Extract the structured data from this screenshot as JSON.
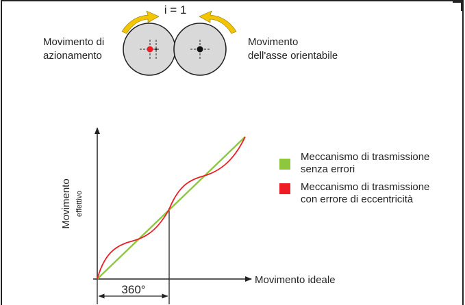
{
  "diagram": {
    "ratio_label": "i = 1",
    "drive": {
      "line1": "Movimento di",
      "line2": "azionamento"
    },
    "axis_motion": {
      "line1": "Movimento",
      "line2": "dell'asse orientabile"
    },
    "y_axis": {
      "main": "Movimento",
      "sub": "effettivo"
    },
    "x_axis": {
      "label": "Movimento ideale"
    },
    "period_label": "360°",
    "legend": [
      {
        "line1": "Meccanismo di trasmissione",
        "line2": "senza errori",
        "color": "#8dc63f"
      },
      {
        "line1": "Meccanismo di trasmissione",
        "line2": "con errore di eccentricità",
        "color": "#ee1c25"
      }
    ]
  },
  "colors": {
    "ideal": "#8dc63f",
    "eccentric": "#ee1c25",
    "arrow": "#f2c500",
    "gear_fill": "#d9d9d9",
    "gear_stroke": "#222222"
  }
}
